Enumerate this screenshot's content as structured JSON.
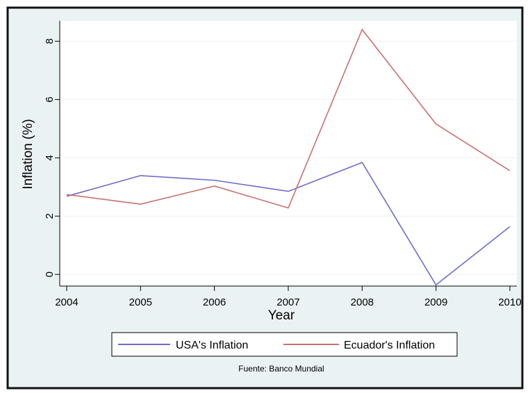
{
  "chart_data": {
    "type": "line",
    "title": "",
    "xlabel": "Year",
    "ylabel": "Inflation (%)",
    "x": [
      2004,
      2005,
      2006,
      2007,
      2008,
      2009,
      2010
    ],
    "x_ticks": [
      "2004",
      "2005",
      "2006",
      "2007",
      "2008",
      "2009",
      "2010"
    ],
    "y_ticks": [
      "0",
      "2",
      "4",
      "6",
      "8"
    ],
    "xlim": [
      2004,
      2010
    ],
    "ylim": [
      -0.4,
      8.7
    ],
    "grid": true,
    "legend_position": "bottom",
    "series": [
      {
        "name": "USA's Inflation",
        "values": [
          2.68,
          3.39,
          3.23,
          2.85,
          3.84,
          -0.36,
          1.64
        ],
        "color": "#6b6bcc"
      },
      {
        "name": "Ecuador's Inflation",
        "values": [
          2.74,
          2.41,
          3.03,
          2.28,
          8.4,
          5.16,
          3.56
        ],
        "color": "#c87070"
      }
    ],
    "source_note": "Fuente: Banco Mundial"
  }
}
